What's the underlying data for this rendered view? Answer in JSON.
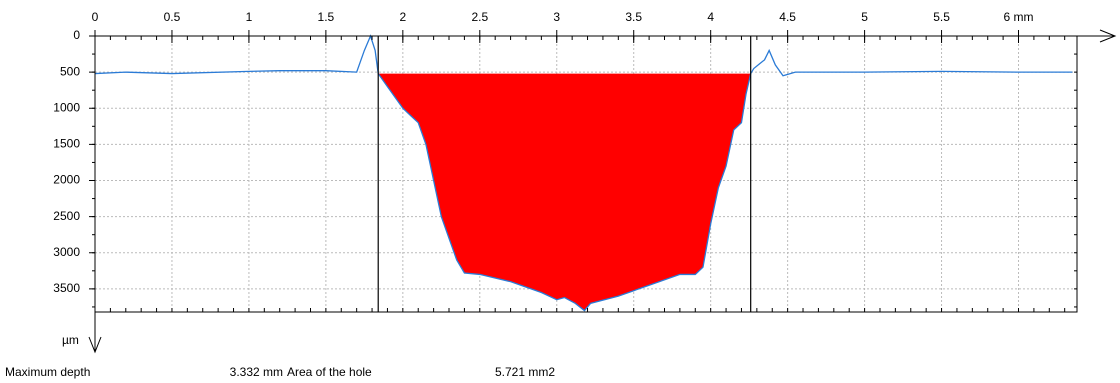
{
  "chart_data": {
    "type": "area",
    "x": [
      0,
      0.2,
      0.5,
      1,
      1.2,
      1.5,
      1.7,
      1.75,
      1.79,
      1.82,
      1.84,
      1.9,
      2.0,
      2.05,
      2.1,
      2.15,
      2.2,
      2.25,
      2.3,
      2.35,
      2.4,
      2.5,
      2.7,
      2.9,
      3.0,
      3.05,
      3.12,
      3.18,
      3.22,
      3.4,
      3.6,
      3.8,
      3.9,
      3.95,
      4.0,
      4.05,
      4.1,
      4.15,
      4.2,
      4.23,
      4.26,
      4.28,
      4.32,
      4.35,
      4.38,
      4.42,
      4.47,
      4.55,
      5,
      5.5,
      6,
      6.35
    ],
    "series": [
      {
        "color": "#2b7bd6",
        "values": [
          520,
          500,
          520,
          490,
          480,
          480,
          500,
          200,
          0,
          200,
          520,
          700,
          1000,
          1100,
          1200,
          1500,
          2000,
          2500,
          2800,
          3100,
          3280,
          3300,
          3400,
          3550,
          3650,
          3620,
          3700,
          3800,
          3700,
          3600,
          3450,
          3300,
          3300,
          3200,
          2600,
          2100,
          1800,
          1300,
          1200,
          800,
          520,
          450,
          380,
          330,
          200,
          400,
          550,
          500,
          500,
          490,
          500,
          500
        ]
      }
    ],
    "fill_color": "#ff0000",
    "markers": [
      1.84,
      4.26
    ],
    "xlim": [
      0,
      6.38
    ],
    "ylim": [
      0,
      3820
    ],
    "y_inverted": true,
    "xticks": [
      0,
      0.5,
      1,
      1.5,
      2,
      2.5,
      3,
      3.5,
      4,
      4.5,
      5,
      5.5,
      {
        "value": 6,
        "label": "6 mm"
      }
    ],
    "yticks": [
      0,
      500,
      1000,
      1500,
      2000,
      2500,
      3000,
      3500
    ],
    "y_unit": "µm",
    "grid": true
  },
  "footer": {
    "max_depth_label": "Maximum depth",
    "max_depth": "3.332 mm",
    "area_label": "Area of the hole",
    "area": "5.721 mm2"
  }
}
